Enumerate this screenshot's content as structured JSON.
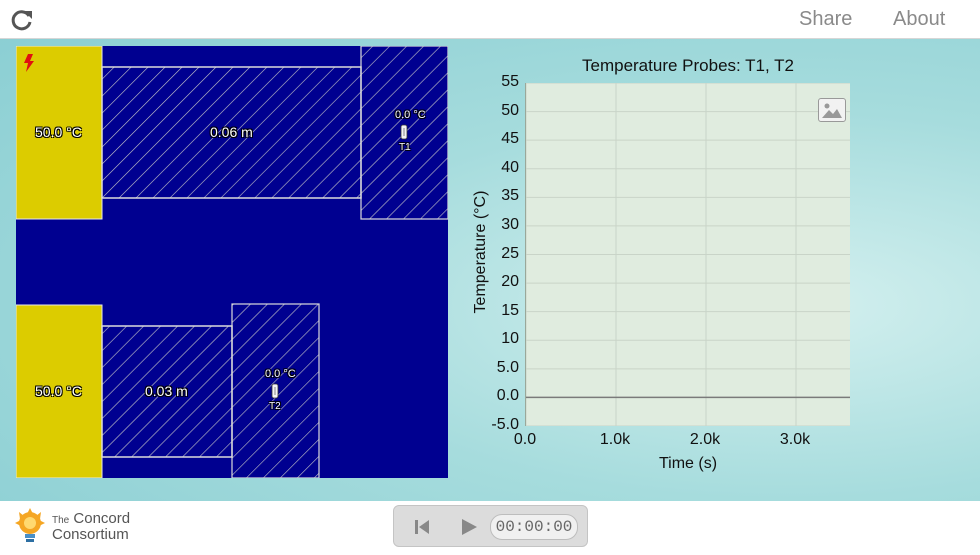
{
  "header": {
    "share_label": "Share",
    "about_label": "About"
  },
  "simulation": {
    "heater_top_temp": "50.0 °C",
    "heater_bottom_temp": "50.0 °C",
    "slab_top_length": "0.06 m",
    "slab_bottom_length": "0.03 m",
    "probe_t1": {
      "name": "T1",
      "reading": "0.0 °C"
    },
    "probe_t2": {
      "name": "T2",
      "reading": "0.0 °C"
    },
    "colors": {
      "background": "#000090",
      "heater": "#dccc00",
      "hatch": "#c8c8c8"
    }
  },
  "graph": {
    "title": "Temperature Probes: T1, T2",
    "ylabel": "Temperature (°C)",
    "xlabel": "Time (s)",
    "yticks": [
      "55",
      "50",
      "45",
      "40",
      "35",
      "30",
      "25",
      "20",
      "15",
      "10",
      "5.0",
      "0.0",
      "-5.0"
    ],
    "xticks": [
      "0.0",
      "1.0k",
      "2.0k",
      "3.0k"
    ]
  },
  "chart_data": {
    "type": "line",
    "title": "Temperature Probes: T1, T2",
    "xlabel": "Time (s)",
    "ylabel": "Temperature (°C)",
    "xlim": [
      0,
      3600
    ],
    "ylim": [
      -5,
      55
    ],
    "xticks": [
      0,
      1000,
      2000,
      3000
    ],
    "yticks": [
      -5,
      0,
      5,
      10,
      15,
      20,
      25,
      30,
      35,
      40,
      45,
      50,
      55
    ],
    "grid": true,
    "series": []
  },
  "footer": {
    "logo_the": "The",
    "logo_line1": "Concord",
    "logo_line2": "Consortium",
    "time_display": "00:00:00"
  }
}
